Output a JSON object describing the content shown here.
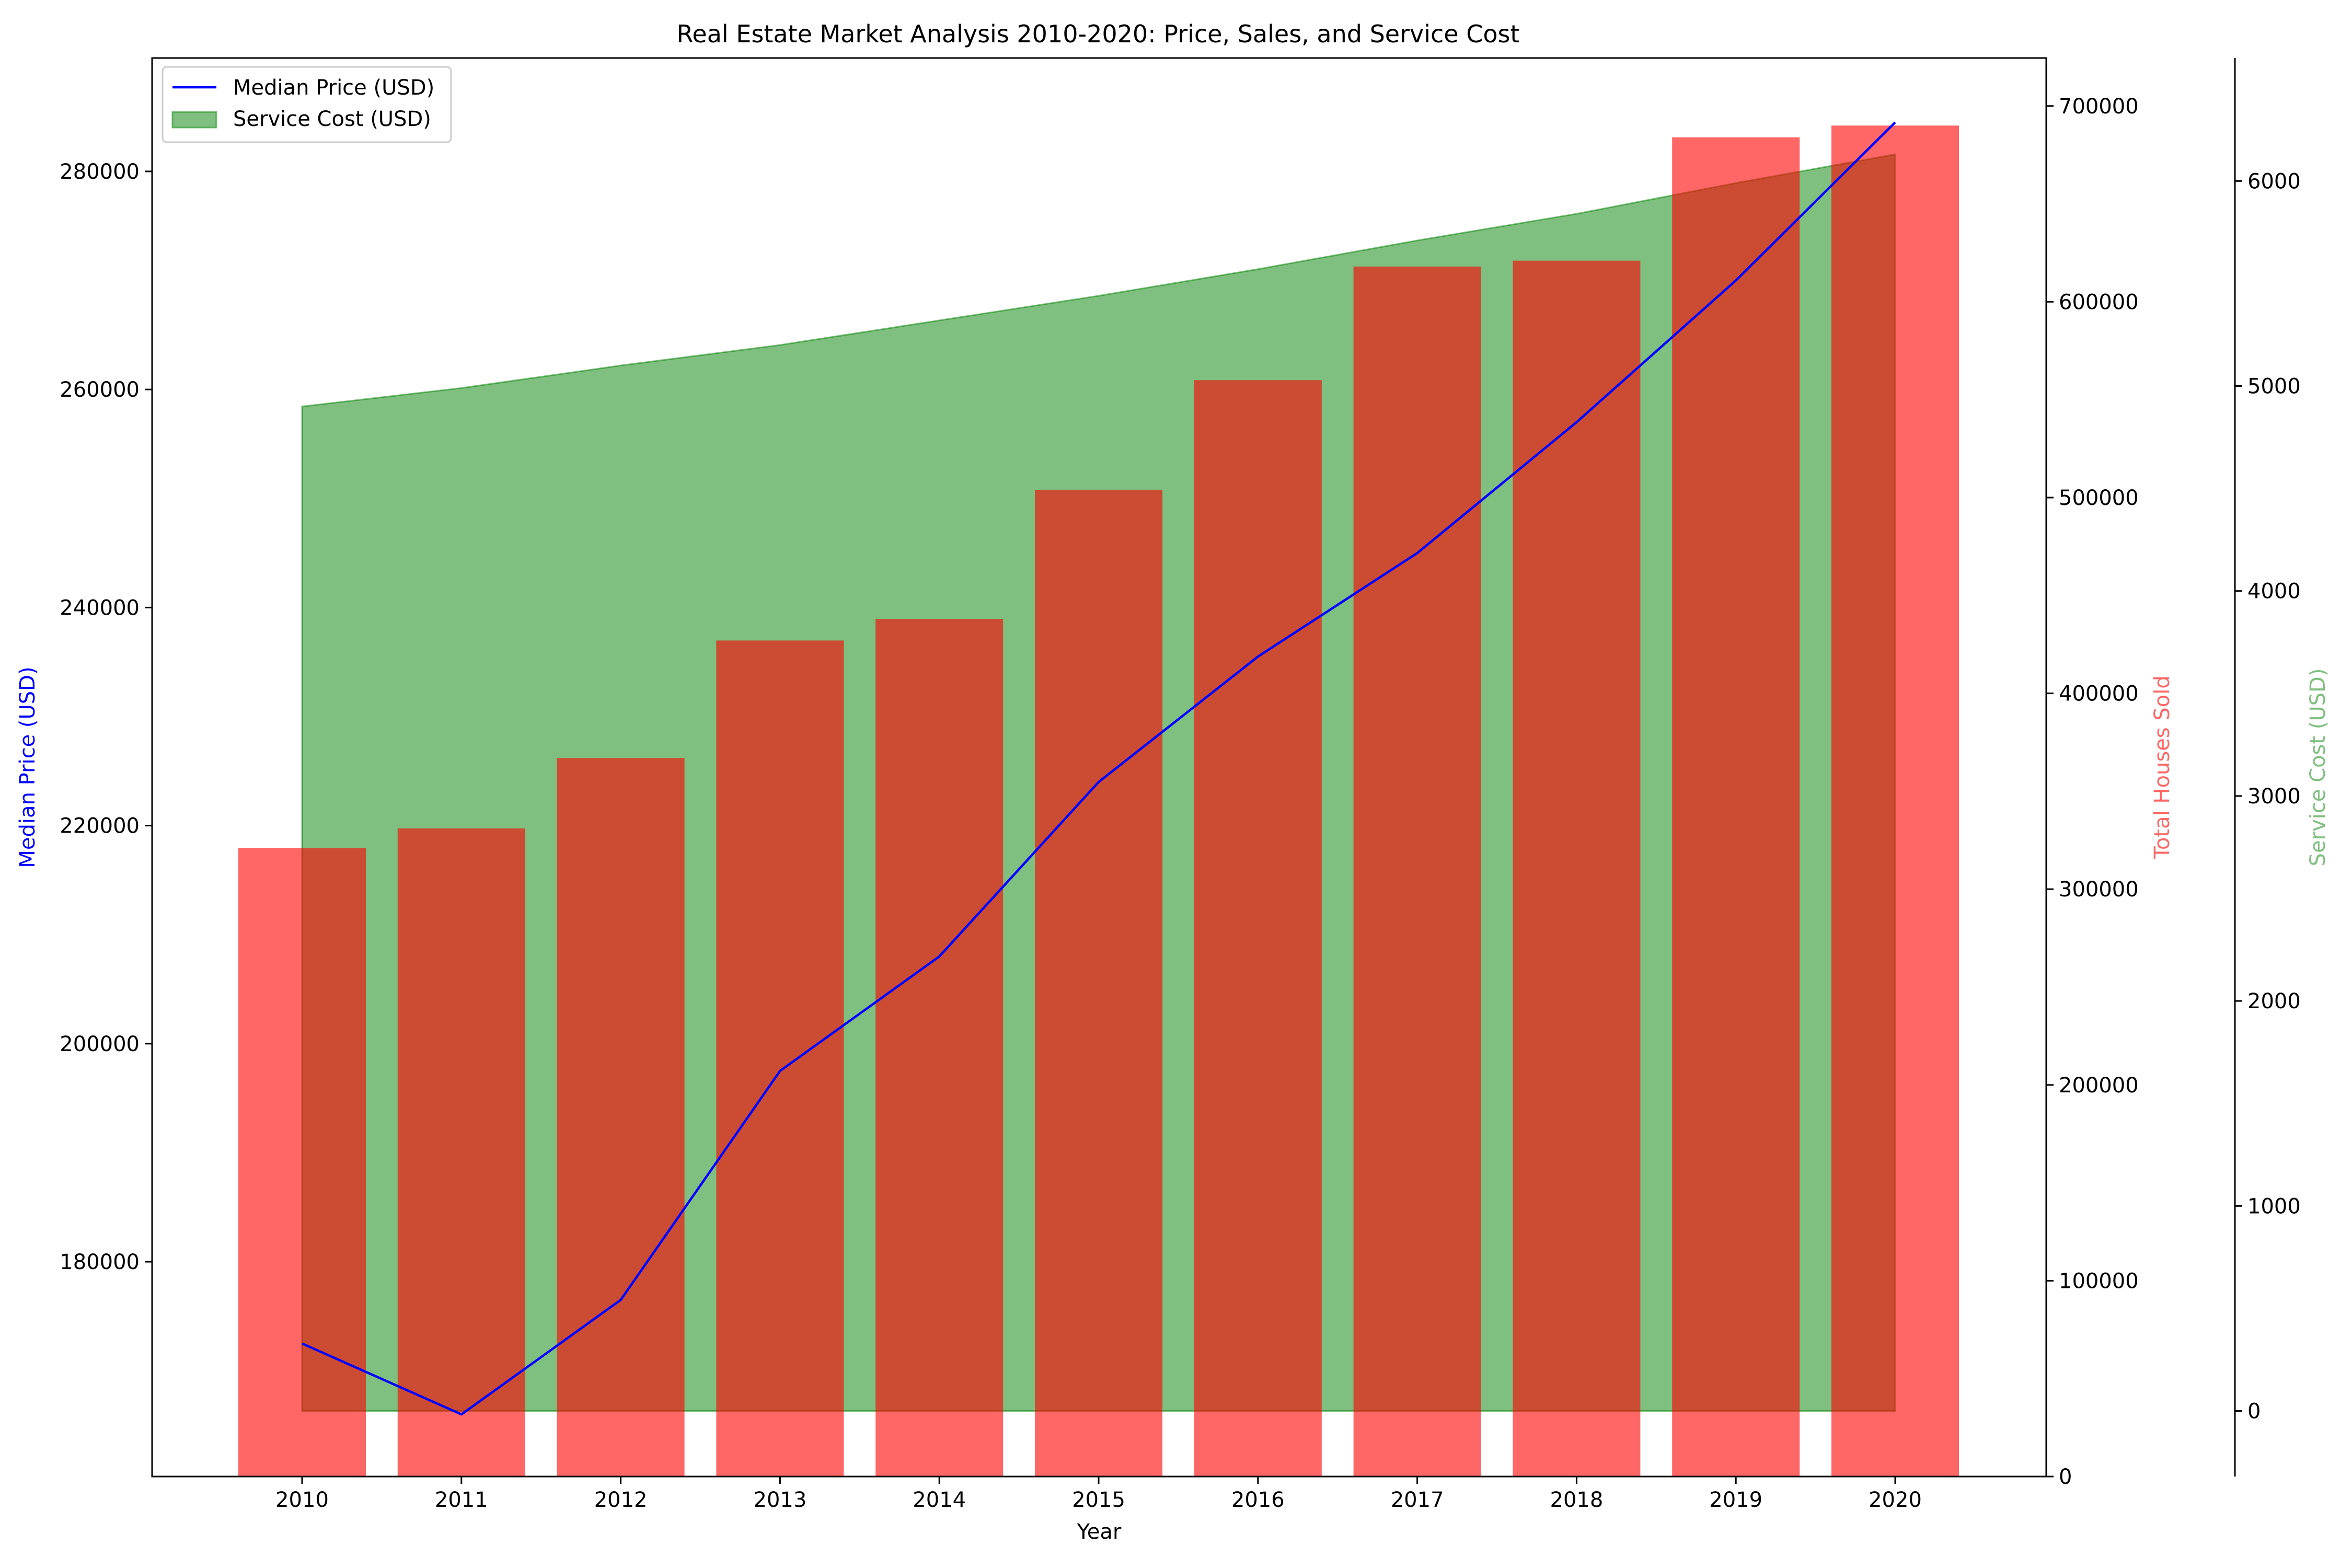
{
  "chart_data": {
    "type": "bar",
    "title": "Real Estate Market Analysis 2010-2020: Price, Sales, and Service Cost",
    "xlabel": "Year",
    "categories": [
      "2010",
      "2011",
      "2012",
      "2013",
      "2014",
      "2015",
      "2016",
      "2017",
      "2018",
      "2019",
      "2020"
    ],
    "series": [
      {
        "name": "Median Price (USD)",
        "type": "line",
        "axis": "left",
        "color": "#0000ff",
        "values": [
          172500,
          166000,
          176500,
          197500,
          208000,
          224000,
          235500,
          245000,
          257000,
          270000,
          284500
        ]
      },
      {
        "type": "bar",
        "axis": "right",
        "color": "#ff0000",
        "values": [
          321000,
          331000,
          367000,
          427000,
          438000,
          504000,
          560000,
          618000,
          621000,
          684000,
          690000
        ]
      },
      {
        "name": "Service Cost (USD)",
        "type": "area",
        "axis": "right-offset",
        "color": "#008000",
        "values": [
          4900,
          4990,
          5100,
          5200,
          5320,
          5440,
          5570,
          5710,
          5840,
          5990,
          6130
        ]
      }
    ],
    "axes": {
      "left": {
        "label": "Median Price (USD)",
        "color": "#0000ff",
        "range": [
          160300,
          290400
        ],
        "ticks": [
          "180000",
          "200000",
          "220000",
          "240000",
          "260000",
          "280000"
        ]
      },
      "right": {
        "label": "Total Houses Sold",
        "color": "#ff0000",
        "range": [
          0,
          724500
        ],
        "ticks": [
          "0",
          "100000",
          "200000",
          "300000",
          "400000",
          "500000",
          "600000",
          "700000"
        ]
      },
      "right_offset": {
        "label": "Service Cost (USD)",
        "color": "#008000",
        "range": [
          -320,
          6600
        ],
        "ticks": [
          "0",
          "1000",
          "2000",
          "3000",
          "4000",
          "5000",
          "6000"
        ]
      }
    },
    "legend": {
      "placement": "top-left",
      "entries": [
        "Median Price (USD)",
        "Service Cost (USD)"
      ]
    },
    "grid": false
  }
}
